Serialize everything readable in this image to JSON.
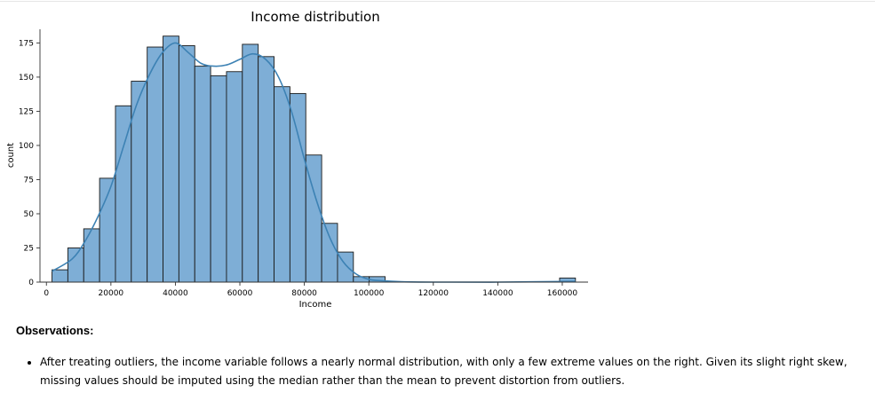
{
  "chart_data": {
    "type": "bar",
    "subtype": "histogram-with-kde",
    "title": "Income distribution",
    "xlabel": "Income",
    "ylabel": "count",
    "xlim": [
      -2000,
      168000
    ],
    "ylim": [
      0,
      185
    ],
    "xticks": [
      0,
      20000,
      40000,
      60000,
      80000,
      100000,
      120000,
      140000,
      160000
    ],
    "yticks": [
      0,
      25,
      50,
      75,
      100,
      125,
      150,
      175
    ],
    "bins": [
      {
        "x0": 1730,
        "x1": 6650,
        "count": 9
      },
      {
        "x0": 6650,
        "x1": 11570,
        "count": 25
      },
      {
        "x0": 11570,
        "x1": 16490,
        "count": 39
      },
      {
        "x0": 16490,
        "x1": 21410,
        "count": 76
      },
      {
        "x0": 21410,
        "x1": 26330,
        "count": 129
      },
      {
        "x0": 26330,
        "x1": 31250,
        "count": 147
      },
      {
        "x0": 31250,
        "x1": 36170,
        "count": 172
      },
      {
        "x0": 36170,
        "x1": 41090,
        "count": 180
      },
      {
        "x0": 41090,
        "x1": 46010,
        "count": 173
      },
      {
        "x0": 46010,
        "x1": 50930,
        "count": 158
      },
      {
        "x0": 50930,
        "x1": 55850,
        "count": 151
      },
      {
        "x0": 55850,
        "x1": 60770,
        "count": 154
      },
      {
        "x0": 60770,
        "x1": 65690,
        "count": 174
      },
      {
        "x0": 65690,
        "x1": 70610,
        "count": 165
      },
      {
        "x0": 70610,
        "x1": 75530,
        "count": 143
      },
      {
        "x0": 75530,
        "x1": 80450,
        "count": 138
      },
      {
        "x0": 80450,
        "x1": 85370,
        "count": 93
      },
      {
        "x0": 85370,
        "x1": 90290,
        "count": 43
      },
      {
        "x0": 90290,
        "x1": 95210,
        "count": 22
      },
      {
        "x0": 95210,
        "x1": 100130,
        "count": 4
      },
      {
        "x0": 100130,
        "x1": 105050,
        "count": 4
      },
      {
        "x0": 105050,
        "x1": 109970,
        "count": 0
      },
      {
        "x0": 109970,
        "x1": 114890,
        "count": 0
      },
      {
        "x0": 114890,
        "x1": 119810,
        "count": 0
      },
      {
        "x0": 119810,
        "x1": 124730,
        "count": 0
      },
      {
        "x0": 124730,
        "x1": 129650,
        "count": 0
      },
      {
        "x0": 129650,
        "x1": 134570,
        "count": 0
      },
      {
        "x0": 134570,
        "x1": 139490,
        "count": 0
      },
      {
        "x0": 139490,
        "x1": 144410,
        "count": 0
      },
      {
        "x0": 144410,
        "x1": 149330,
        "count": 0
      },
      {
        "x0": 149330,
        "x1": 154250,
        "count": 0
      },
      {
        "x0": 154250,
        "x1": 159170,
        "count": 0
      },
      {
        "x0": 159170,
        "x1": 164090,
        "count": 3
      }
    ],
    "kde": {
      "x": [
        1730,
        8000,
        12000,
        16000,
        20000,
        24000,
        28000,
        32000,
        36000,
        40000,
        44000,
        48000,
        52000,
        56000,
        60000,
        64000,
        68000,
        72000,
        76000,
        80000,
        84000,
        88000,
        92000,
        96000,
        100000,
        104000,
        110000,
        120000,
        140000,
        164090
      ],
      "y": [
        8,
        17,
        30,
        48,
        70,
        100,
        130,
        152,
        168,
        175,
        168,
        160,
        158,
        159,
        163,
        167,
        163,
        150,
        125,
        90,
        58,
        32,
        15,
        6,
        2,
        1,
        0.3,
        0,
        0,
        0.5
      ]
    },
    "bar_color": "#7eaed6",
    "bar_edge_color": "#1a1a1a",
    "kde_color": "#3d82b4",
    "grid": false,
    "legend": "none"
  },
  "observations": {
    "heading": "Observations:",
    "items": [
      "After treating outliers, the income variable follows a nearly normal distribution, with only a few extreme values on the right. Given its slight right skew, missing values should be imputed using the median rather than the mean to prevent distortion from outliers."
    ]
  }
}
